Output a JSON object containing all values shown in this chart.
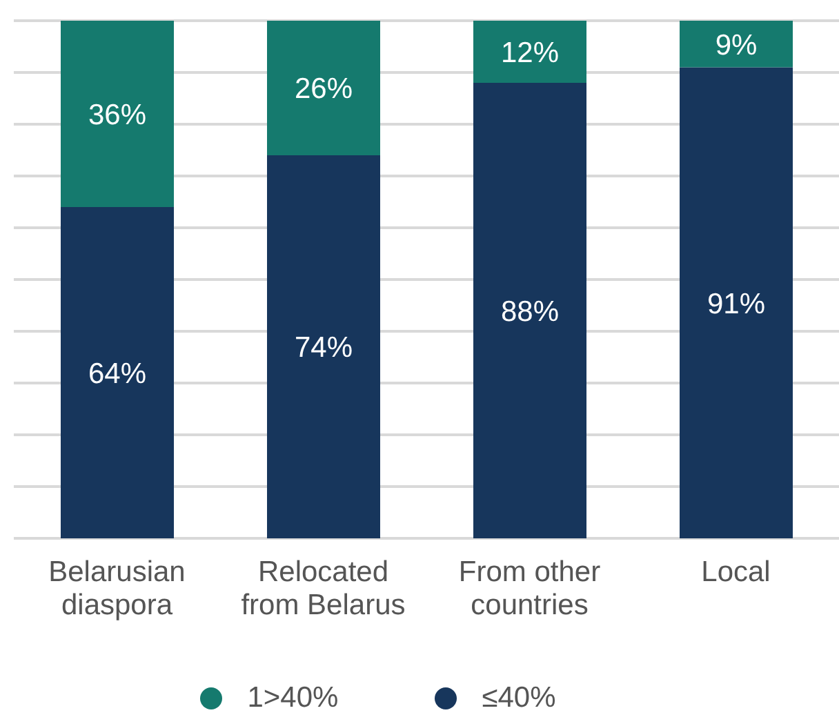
{
  "chart_data": {
    "type": "bar",
    "stacked": true,
    "categories": [
      "Belarusian diaspora",
      "Relocated from Belarus",
      "From other countries",
      "Local"
    ],
    "series": [
      {
        "name": "≤40%",
        "color": "#17365c",
        "values": [
          64,
          74,
          88,
          91
        ],
        "value_labels": [
          "64%",
          "74%",
          "88%",
          "91%"
        ]
      },
      {
        "name": "1>40%",
        "color": "#157a6e",
        "values": [
          36,
          26,
          12,
          9
        ],
        "value_labels": [
          "36%",
          "26%",
          "12%",
          "9%"
        ]
      }
    ],
    "tick_labels": "x",
    "grid": "y",
    "legend": "bottom"
  }
}
